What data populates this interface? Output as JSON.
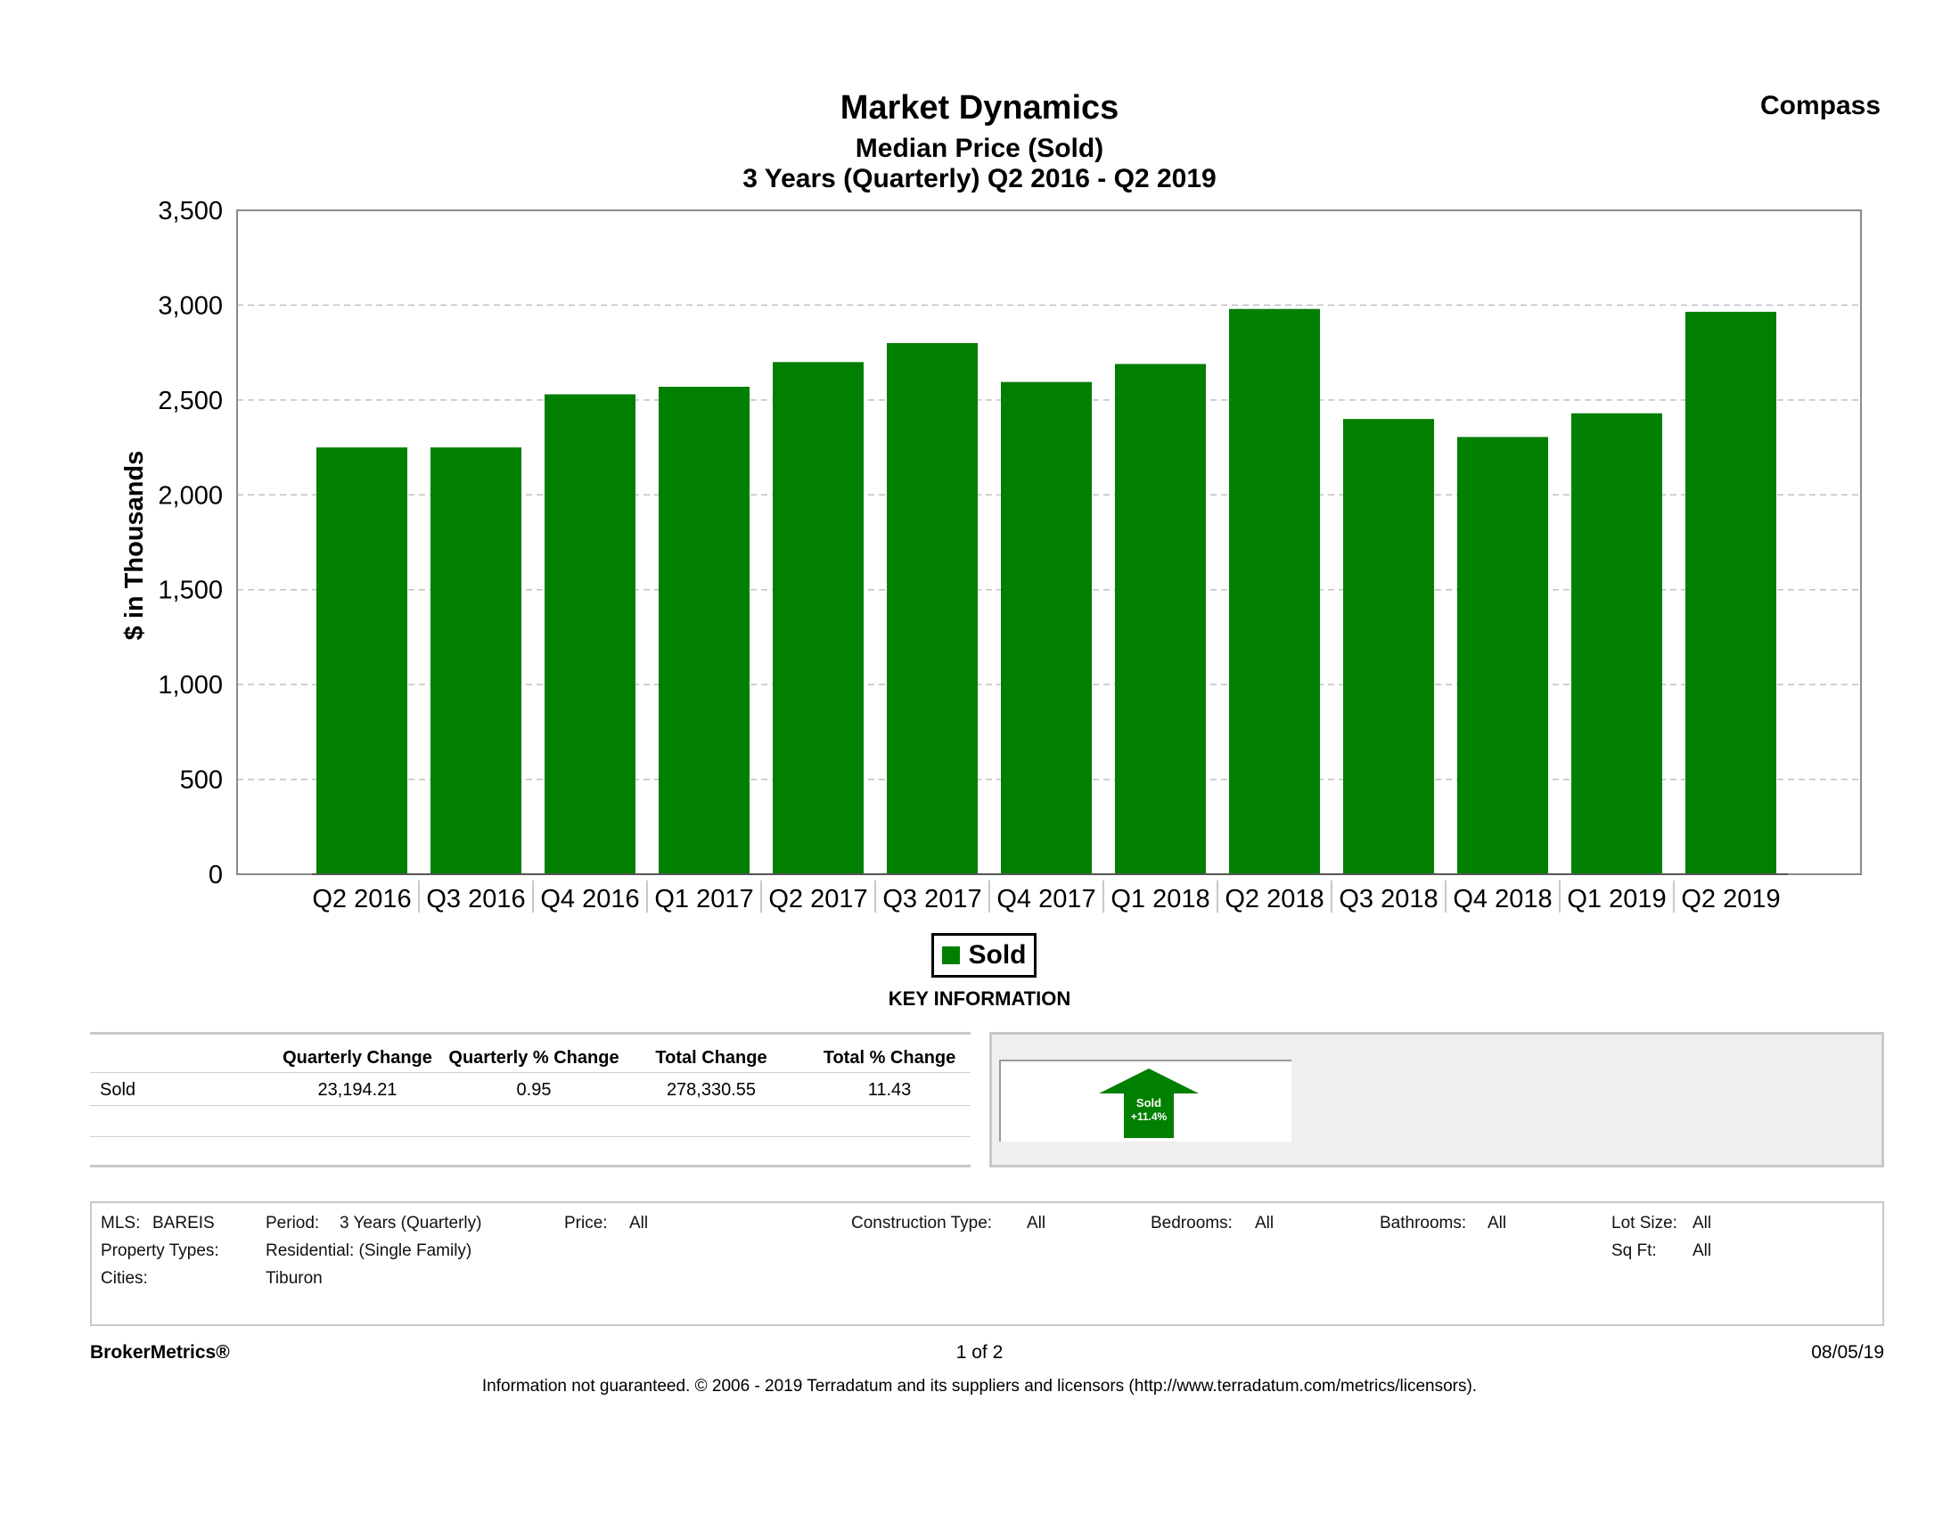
{
  "header": {
    "title": "Market Dynamics",
    "subtitle": "Median Price (Sold)",
    "subtitle2": "3 Years (Quarterly) Q2 2016 - Q2 2019",
    "brand": "Compass"
  },
  "chart_data": {
    "type": "bar",
    "categories": [
      "Q2 2016",
      "Q3 2016",
      "Q4 2016",
      "Q1 2017",
      "Q2 2017",
      "Q3 2017",
      "Q4 2017",
      "Q1 2018",
      "Q2 2018",
      "Q3 2018",
      "Q4 2018",
      "Q1 2019",
      "Q2 2019"
    ],
    "series": [
      {
        "name": "Sold",
        "color": "#007f00",
        "values": [
          2250,
          2250,
          2530,
          2570,
          2700,
          2800,
          2595,
          2690,
          2980,
          2400,
          2305,
          2430,
          2965
        ]
      }
    ],
    "xlabel": "",
    "ylabel": "$ in Thousands",
    "ylim": [
      0,
      3500
    ],
    "yticks": [
      0,
      500,
      1000,
      1500,
      2000,
      2500,
      3000,
      3500
    ],
    "ytick_labels": [
      "0",
      "500",
      "1,000",
      "1,500",
      "2,000",
      "2,500",
      "3,000",
      "3,500"
    ],
    "grid": true,
    "legend_placement": "bottom-center"
  },
  "legend": {
    "label": "Sold"
  },
  "key_info": {
    "title": "KEY INFORMATION",
    "headers": [
      "Quarterly Change",
      "Quarterly % Change",
      "Total Change",
      "Total % Change"
    ],
    "rows": [
      {
        "label": "Sold",
        "values": [
          "23,194.21",
          "0.95",
          "278,330.55",
          "11.43"
        ]
      }
    ],
    "badge": {
      "label": "Sold",
      "change": "+11.4%",
      "direction": "up",
      "color": "#007f00"
    }
  },
  "criteria": {
    "mls_label": "MLS:",
    "mls_value": "BAREIS",
    "period_label": "Period:",
    "period_value": "3 Years (Quarterly)",
    "price_label": "Price:",
    "price_value": "All",
    "construction_label": "Construction Type:",
    "construction_value": "All",
    "bedrooms_label": "Bedrooms:",
    "bedrooms_value": "All",
    "bathrooms_label": "Bathrooms:",
    "bathrooms_value": "All",
    "lotsize_label": "Lot Size:",
    "lotsize_value": "All",
    "proptypes_label": "Property Types:",
    "proptypes_value": "Residential: (Single Family)",
    "sqft_label": "Sq Ft:",
    "sqft_value": "All",
    "cities_label": "Cities:",
    "cities_value": "Tiburon"
  },
  "footer": {
    "brand": "BrokerMetrics®",
    "page": "1 of 2",
    "date": "08/05/19",
    "disclaimer": "Information not guaranteed.  © 2006 - 2019 Terradatum and its suppliers and licensors (http://www.terradatum.com/metrics/licensors)."
  }
}
